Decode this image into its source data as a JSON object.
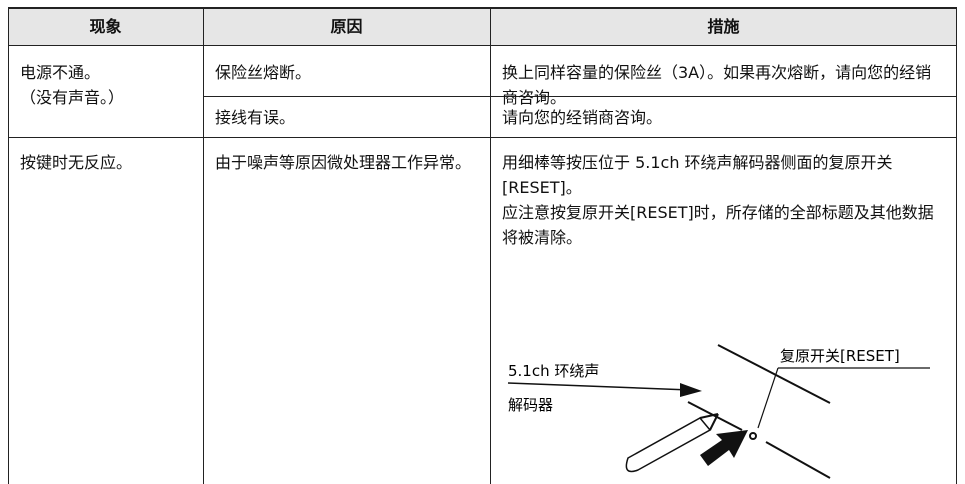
{
  "table": {
    "header": [
      "现象",
      "原因",
      "措施"
    ],
    "rows": [
      {
        "symptom": [
          "电源不通。",
          "（没有声音。）"
        ],
        "causes": [
          {
            "cause": "保险丝熔断。",
            "remedy": [
              "换上同样容量的保险丝（3A）。如果再次熔断，请向您的经销商咨询。"
            ]
          },
          {
            "cause": "接线有误。",
            "remedy": [
              "请向您的经销商咨询。"
            ]
          }
        ]
      },
      {
        "symptom": [
          "按键时无反应。"
        ],
        "causes": [
          {
            "cause": "由于噪声等原因微处理器工作异常。",
            "remedy": [
              "用细棒等按压位于 5.1ch 环绕声解码器侧面的复原开关[RESET]。",
              "应注意按复原开关[RESET]时，所存储的全部标题及其他数据将被清除。"
            ]
          }
        ]
      }
    ]
  },
  "figure": {
    "device_label": [
      "5.1ch 环绕声",
      "解码器"
    ],
    "switch_label": "复原开关[RESET]"
  }
}
